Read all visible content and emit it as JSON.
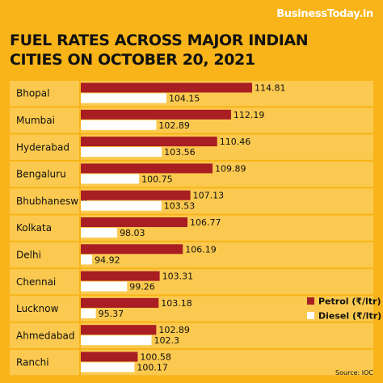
{
  "brand": "BusinessToday.in",
  "source": "Source: IOC",
  "colors": {
    "background": "#f8b418",
    "petrol": "#a81e22",
    "diesel": "#ffffff",
    "row_band": "#fbc94f"
  },
  "chart_data": {
    "type": "bar",
    "orientation": "horizontal",
    "title": "FUEL RATES ACROSS MAJOR INDIAN CITIES ON OCTOBER 20, 2021",
    "categories": [
      "Bhopal",
      "Mumbai",
      "Hyderabad",
      "Bengaluru",
      "Bhubhaneswar",
      "Kolkata",
      "Delhi",
      "Chennai",
      "Lucknow",
      "Ahmedabad",
      "Ranchi"
    ],
    "series": [
      {
        "name": "Petrol (₹/ltr)",
        "values": [
          114.81,
          112.19,
          110.46,
          109.89,
          107.13,
          106.77,
          106.19,
          103.31,
          103.18,
          102.89,
          100.58
        ]
      },
      {
        "name": "Diesel (₹/ltr)",
        "values": [
          104.15,
          102.89,
          103.56,
          100.75,
          103.53,
          98.03,
          94.92,
          99.26,
          95.37,
          102.3,
          100.17
        ]
      }
    ],
    "legend_position": "right",
    "grid": false
  }
}
